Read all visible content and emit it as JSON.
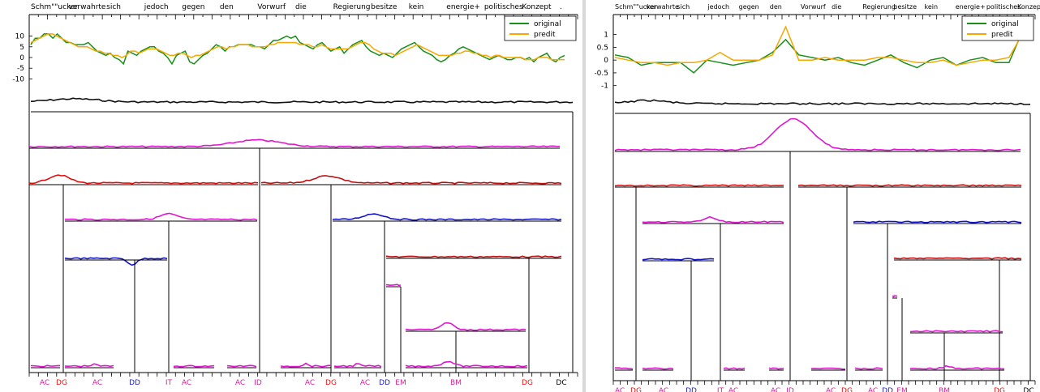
{
  "chart_data": [
    {
      "type": "line",
      "panel": "left",
      "words": [
        "Schm\"\"ucker",
        "verwahrte",
        "sich",
        "jedoch",
        "gegen",
        "den",
        "Vorwurf",
        "die",
        "Regierung",
        "besitze",
        "kein",
        "energie+",
        "politisches",
        "Konzept",
        "."
      ],
      "yticks": [
        10,
        5,
        0,
        -5,
        -10
      ],
      "ylim": [
        -14,
        14
      ],
      "legend_position": "top-right",
      "series": [
        {
          "name": "original",
          "color": "#1a8f1a",
          "values": [
            6,
            9,
            9,
            11,
            11,
            9,
            11,
            9,
            7,
            7,
            6,
            6,
            6,
            7,
            5,
            3,
            2,
            1,
            2,
            0,
            -1,
            -3,
            3,
            2,
            1,
            3,
            4,
            5,
            5,
            3,
            2,
            0,
            -3,
            1,
            2,
            3,
            -2,
            -3,
            -1,
            1,
            2,
            4,
            6,
            5,
            3,
            5,
            5,
            6,
            6,
            6,
            6,
            5,
            5,
            4,
            6,
            8,
            8,
            9,
            10,
            9,
            10,
            7,
            6,
            5,
            4,
            6,
            7,
            5,
            3,
            4,
            5,
            2,
            4,
            6,
            7,
            8,
            5,
            3,
            2,
            1,
            2,
            1,
            0,
            2,
            4,
            5,
            6,
            7,
            5,
            3,
            2,
            1,
            -1,
            -2,
            -1,
            1,
            2,
            4,
            5,
            4,
            3,
            2,
            1,
            0,
            -1,
            0,
            1,
            0,
            -1,
            -1,
            0,
            0,
            -1,
            0,
            -2,
            0,
            1,
            2,
            -1,
            -2,
            0,
            1
          ]
        },
        {
          "name": "predit",
          "color": "#f5a800",
          "values": [
            7,
            8,
            9,
            10,
            11,
            11,
            10,
            9,
            8,
            7,
            6,
            5,
            5,
            5,
            4,
            3,
            3,
            2,
            2,
            1,
            1,
            0,
            1,
            3,
            3,
            2,
            3,
            4,
            4,
            4,
            3,
            2,
            1,
            1,
            2,
            2,
            1,
            0,
            1,
            1,
            2,
            3,
            4,
            5,
            5,
            4,
            5,
            5,
            6,
            6,
            6,
            5,
            5,
            5,
            5,
            6,
            6,
            7,
            7,
            7,
            7,
            7,
            6,
            6,
            6,
            5,
            5,
            6,
            5,
            4,
            4,
            4,
            4,
            4,
            5,
            6,
            7,
            7,
            6,
            4,
            3,
            2,
            2,
            2,
            1,
            2,
            3,
            4,
            5,
            6,
            5,
            4,
            3,
            2,
            1,
            1,
            1,
            1,
            2,
            2,
            3,
            3,
            2,
            2,
            1,
            1,
            0,
            1,
            1,
            0,
            0,
            0,
            0,
            0,
            -1,
            -1,
            -1,
            0,
            0,
            0,
            -1,
            -1,
            -1,
            -1
          ]
        }
      ],
      "tree_labels": [
        {
          "text": "AC",
          "color": "#d61f9b"
        },
        {
          "text": "DG",
          "color": "#e01010"
        },
        {
          "text": "AC",
          "color": "#d61f9b"
        },
        {
          "text": "DD",
          "color": "#2020c8"
        },
        {
          "text": "IT",
          "color": "#d61f9b"
        },
        {
          "text": "AC",
          "color": "#d61f9b"
        },
        {
          "text": "AC",
          "color": "#d61f9b"
        },
        {
          "text": "ID",
          "color": "#d61f9b"
        },
        {
          "text": "AC",
          "color": "#d61f9b"
        },
        {
          "text": "DG",
          "color": "#e01010"
        },
        {
          "text": "AC",
          "color": "#d61f9b"
        },
        {
          "text": "DD",
          "color": "#2020c8"
        },
        {
          "text": "EM",
          "color": "#d61f9b"
        },
        {
          "text": "BM",
          "color": "#d61f9b"
        },
        {
          "text": "DG",
          "color": "#e01010"
        },
        {
          "text": "DC",
          "color": "#000000"
        }
      ]
    },
    {
      "type": "line",
      "panel": "right",
      "words": [
        "Schm\"\"ucker",
        "verwahrte",
        "sich",
        "jedoch",
        "gegen",
        "den",
        "Vorwurf",
        "die",
        "Regierung",
        "besitze",
        "kein",
        "energie+",
        "politisches",
        "Konzept"
      ],
      "yticks": [
        1,
        0.5,
        0,
        -0.5,
        -1
      ],
      "ylim": [
        -1.2,
        1.4
      ],
      "legend_position": "top-right",
      "series": [
        {
          "name": "original",
          "color": "#1a8f1a",
          "values": [
            0.2,
            0.1,
            -0.2,
            -0.1,
            -0.1,
            -0.1,
            -0.5,
            0.0,
            -0.1,
            -0.2,
            -0.1,
            0.0,
            0.3,
            0.8,
            0.2,
            0.1,
            0.0,
            0.1,
            -0.1,
            -0.2,
            0.0,
            0.2,
            -0.1,
            -0.3,
            0.0,
            0.1,
            -0.2,
            0.0,
            0.1,
            -0.1,
            -0.1,
            1.1
          ]
        },
        {
          "name": "predit",
          "color": "#f5a800",
          "values": [
            0.1,
            0.0,
            -0.1,
            -0.1,
            -0.2,
            -0.1,
            -0.1,
            0.0,
            0.3,
            0.0,
            0.0,
            0.0,
            0.2,
            1.3,
            0.0,
            0.0,
            0.1,
            0.0,
            0.0,
            0.0,
            0.1,
            0.1,
            0.0,
            -0.1,
            -0.1,
            0.0,
            -0.2,
            -0.1,
            0.0,
            0.0,
            0.1,
            1.0
          ]
        }
      ],
      "tree_labels": [
        {
          "text": "AC",
          "color": "#d61f9b"
        },
        {
          "text": "DG",
          "color": "#e01010"
        },
        {
          "text": "AC",
          "color": "#d61f9b"
        },
        {
          "text": "DD",
          "color": "#2020c8"
        },
        {
          "text": "IT",
          "color": "#d61f9b"
        },
        {
          "text": "AC",
          "color": "#d61f9b"
        },
        {
          "text": "AC",
          "color": "#d61f9b"
        },
        {
          "text": "ID",
          "color": "#d61f9b"
        },
        {
          "text": "AC",
          "color": "#d61f9b"
        },
        {
          "text": "DG",
          "color": "#e01010"
        },
        {
          "text": "AC",
          "color": "#d61f9b"
        },
        {
          "text": "DD",
          "color": "#2020c8"
        },
        {
          "text": "EM",
          "color": "#d61f9b"
        },
        {
          "text": "BM",
          "color": "#d61f9b"
        },
        {
          "text": "DG",
          "color": "#e01010"
        },
        {
          "text": "DC",
          "color": "#000000"
        }
      ]
    }
  ]
}
